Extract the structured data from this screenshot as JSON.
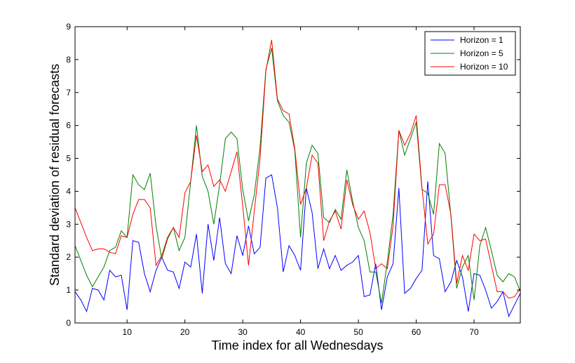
{
  "chart_data": {
    "type": "line",
    "title": "",
    "xlabel": "Time index for all Wednesdays",
    "ylabel": "Standard deviation of residual forecasts",
    "xlim": [
      1,
      78
    ],
    "ylim": [
      0,
      9
    ],
    "x_ticks": [
      10,
      20,
      30,
      40,
      50,
      60,
      70
    ],
    "y_ticks": [
      0,
      1,
      2,
      3,
      4,
      5,
      6,
      7,
      8,
      9
    ],
    "grid": false,
    "legend_position": "top-right",
    "x": [
      1,
      2,
      3,
      4,
      5,
      6,
      7,
      8,
      9,
      10,
      11,
      12,
      13,
      14,
      15,
      16,
      17,
      18,
      19,
      20,
      21,
      22,
      23,
      24,
      25,
      26,
      27,
      28,
      29,
      30,
      31,
      32,
      33,
      34,
      35,
      36,
      37,
      38,
      39,
      40,
      41,
      42,
      43,
      44,
      45,
      46,
      47,
      48,
      49,
      50,
      51,
      52,
      53,
      54,
      55,
      56,
      57,
      58,
      59,
      60,
      61,
      62,
      63,
      64,
      65,
      66,
      67,
      68,
      69,
      70,
      71,
      72,
      73,
      74,
      75,
      76,
      77,
      78
    ],
    "series": [
      {
        "name": "Horizon = 1",
        "color": "#0000ff",
        "values": [
          0.95,
          0.7,
          0.35,
          1.05,
          1.0,
          0.7,
          1.6,
          1.4,
          1.45,
          0.4,
          2.5,
          2.45,
          1.5,
          0.95,
          1.6,
          2.0,
          1.6,
          1.55,
          1.05,
          1.85,
          1.7,
          2.7,
          0.9,
          3.0,
          1.9,
          3.2,
          1.8,
          1.5,
          2.65,
          2.05,
          2.95,
          2.1,
          2.3,
          4.4,
          4.5,
          3.5,
          1.55,
          2.35,
          2.05,
          1.6,
          4.1,
          3.35,
          1.65,
          2.25,
          1.65,
          2.05,
          1.6,
          1.75,
          1.85,
          2.05,
          0.8,
          0.85,
          1.8,
          0.4,
          1.4,
          1.8,
          4.1,
          0.9,
          1.05,
          1.35,
          1.6,
          4.3,
          2.05,
          1.95,
          0.95,
          1.25,
          1.9,
          1.4,
          0.35,
          1.5,
          1.45,
          1.0,
          0.45,
          0.65,
          0.95,
          0.2,
          0.55,
          0.9
        ]
      },
      {
        "name": "Horizon = 5",
        "color": "#008000",
        "values": [
          2.35,
          1.9,
          1.45,
          1.1,
          1.4,
          1.7,
          2.2,
          2.3,
          2.8,
          2.6,
          4.5,
          4.2,
          4.05,
          4.55,
          2.95,
          1.95,
          2.55,
          2.9,
          2.2,
          2.6,
          4.3,
          6.0,
          4.45,
          4.0,
          3.0,
          4.2,
          5.6,
          5.8,
          5.6,
          4.05,
          3.1,
          3.9,
          5.35,
          7.7,
          8.35,
          6.75,
          6.3,
          6.1,
          5.25,
          2.6,
          4.85,
          5.4,
          5.15,
          3.2,
          3.05,
          3.45,
          3.15,
          4.65,
          3.7,
          2.9,
          2.5,
          1.55,
          1.55,
          0.6,
          1.85,
          3.3,
          5.85,
          5.1,
          5.6,
          6.1,
          4.05,
          3.95,
          3.3,
          5.45,
          5.15,
          3.25,
          1.05,
          1.7,
          2.05,
          0.7,
          2.35,
          2.9,
          2.2,
          1.45,
          1.25,
          1.5,
          1.4,
          0.95
        ]
      },
      {
        "name": "Horizon = 10",
        "color": "#ff0000",
        "values": [
          3.5,
          3.05,
          2.6,
          2.2,
          2.25,
          2.25,
          2.15,
          2.1,
          2.65,
          2.6,
          3.3,
          3.75,
          3.75,
          3.5,
          1.75,
          2.05,
          2.6,
          2.9,
          2.6,
          3.95,
          4.3,
          5.7,
          4.6,
          4.8,
          4.15,
          4.35,
          4.0,
          4.6,
          5.2,
          3.55,
          1.75,
          3.4,
          5.0,
          7.65,
          8.6,
          6.8,
          6.45,
          6.35,
          5.3,
          3.6,
          4.1,
          5.1,
          4.85,
          2.5,
          3.1,
          3.4,
          2.85,
          4.35,
          3.6,
          3.15,
          3.4,
          2.75,
          1.65,
          1.8,
          1.65,
          2.95,
          5.85,
          5.4,
          5.75,
          6.3,
          4.1,
          2.4,
          2.7,
          4.2,
          4.2,
          3.3,
          1.2,
          2.05,
          1.6,
          2.7,
          2.5,
          2.55,
          1.75,
          0.95,
          0.95,
          0.75,
          0.8,
          1.05
        ]
      }
    ]
  }
}
